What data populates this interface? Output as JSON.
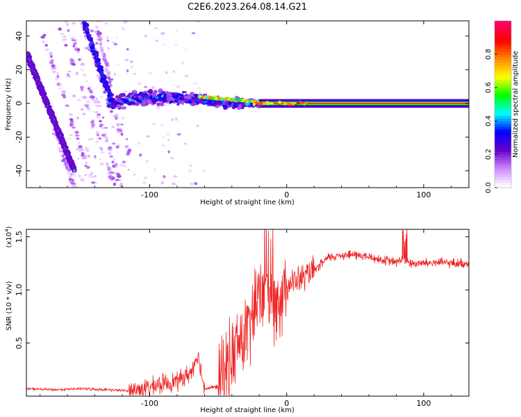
{
  "title": "C2E6.2023.264.08.14.G21",
  "chart_data": [
    {
      "type": "heatmap",
      "title": "C2E6.2023.264.08.14.G21",
      "xlabel": "Height of straight line (km)",
      "ylabel": "Frequency (Hz)",
      "xlim": [
        -190,
        133
      ],
      "ylim": [
        -50,
        49
      ],
      "xticks": [
        -100,
        0,
        100
      ],
      "yticks": [
        -40,
        -20,
        0,
        20,
        40
      ],
      "colorbar": {
        "label": "Normalized spectral amplitude",
        "range": [
          0,
          1
        ],
        "ticks": [
          "0.0",
          "0.2",
          "0.4",
          "0.6",
          "0.8"
        ],
        "colormap": [
          "#ffffff",
          "#cc88ff",
          "#6600cc",
          "#0000ff",
          "#00ffff",
          "#00ff00",
          "#ffff00",
          "#ff8800",
          "#ff0000",
          "#ff0066"
        ]
      },
      "features": [
        {
          "name": "main-tone",
          "x": [
            0,
            133
          ],
          "y": [
            0,
            0
          ],
          "amplitude": 0.9
        },
        {
          "name": "cluster-tone",
          "x": [
            -130,
            -20
          ],
          "y": [
            0,
            4
          ],
          "amplitude": 0.35
        },
        {
          "name": "descending-line",
          "x": [
            -190,
            -155
          ],
          "y": [
            30,
            -40
          ],
          "amplitude": 0.45
        },
        {
          "name": "upper-line",
          "x": [
            -148,
            -128
          ],
          "y": [
            48,
            2
          ],
          "amplitude": 0.3
        }
      ]
    },
    {
      "type": "line",
      "xlabel": "Height of straight line (km)",
      "ylabel": "SNR (10 * v/v)",
      "ylabel_scale": "(x10",
      "ylabel_exponent": "4",
      "ylabel_scale_close": ")",
      "xlim": [
        -190,
        133
      ],
      "ylim": [
        0,
        1.57
      ],
      "xticks": [
        -100,
        0,
        100
      ],
      "yticks": [
        "0.5",
        "1.0",
        "1.5"
      ],
      "color": "#ee2222",
      "series": [
        {
          "name": "SNR",
          "x": [
            -190,
            -170,
            -150,
            -130,
            -115,
            -100,
            -90,
            -80,
            -70,
            -65,
            -60,
            -50,
            -45,
            -40,
            -35,
            -30,
            -25,
            -20,
            -15,
            -10,
            -5,
            0,
            10,
            20,
            30,
            40,
            50,
            60,
            70,
            80,
            85,
            90,
            100,
            110,
            120,
            133
          ],
          "values": [
            0.07,
            0.06,
            0.07,
            0.06,
            0.05,
            0.08,
            0.12,
            0.14,
            0.22,
            0.4,
            0.07,
            0.09,
            0.25,
            0.35,
            0.5,
            0.55,
            0.75,
            0.95,
            1.05,
            0.9,
            0.95,
            1.05,
            1.1,
            1.18,
            1.3,
            1.33,
            1.33,
            1.31,
            1.28,
            1.26,
            1.3,
            1.25,
            1.25,
            1.26,
            1.25,
            1.25
          ]
        }
      ]
    }
  ]
}
